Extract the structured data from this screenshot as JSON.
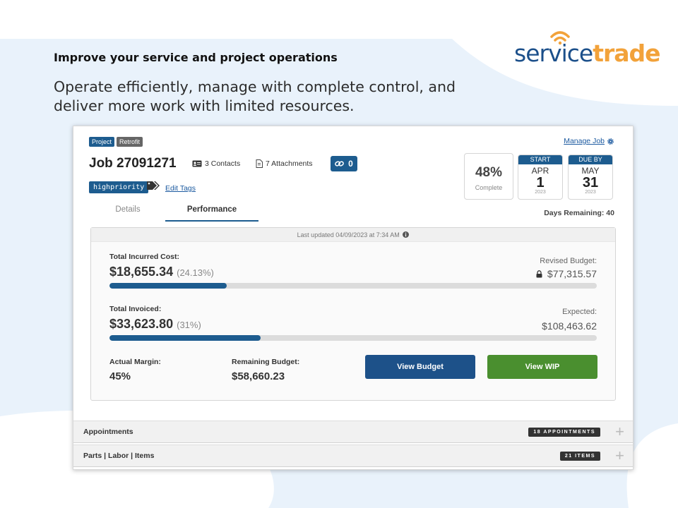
{
  "marketing": {
    "headline": "Improve your service and project operations",
    "subline": "Operate efficiently, manage with complete control, and deliver more work with limited resources."
  },
  "logo": {
    "service": "service",
    "trade": "trade"
  },
  "job": {
    "tags": [
      "Project",
      "Retrofit"
    ],
    "manage_label": "Manage Job",
    "title": "Job 27091271",
    "contacts": "3 Contacts",
    "attachments": "7 Attachments",
    "link_count": "0",
    "priority_tag": "highpriority",
    "edit_tags_label": "Edit Tags"
  },
  "progress": {
    "percent_label": "48%",
    "complete_label": "Complete",
    "value": 0.48
  },
  "dates": {
    "start": {
      "head": "START",
      "month": "APR",
      "day": "1",
      "year": "2023"
    },
    "due": {
      "head": "DUE BY",
      "month": "MAY",
      "day": "31",
      "year": "2023"
    }
  },
  "tabs": [
    {
      "label": "Details",
      "active": false
    },
    {
      "label": "Performance",
      "active": true
    }
  ],
  "days_remaining": "Days Remaining: 40",
  "performance": {
    "updated": "Last updated 04/09/2023 at 7:34 AM",
    "incurred": {
      "label": "Total Incurred Cost:",
      "amount": "$18,655.34",
      "pct": "(24.13%)",
      "fraction": 0.2413
    },
    "revised_budget": {
      "label": "Revised Budget:",
      "value": "$77,315.57"
    },
    "invoiced": {
      "label": "Total Invoiced:",
      "amount": "$33,623.80",
      "pct": "(31%)",
      "fraction": 0.31
    },
    "expected": {
      "label": "Expected:",
      "value": "$108,463.62"
    },
    "margin": {
      "label": "Actual Margin:",
      "value": "45%"
    },
    "remaining": {
      "label": "Remaining Budget:",
      "value": "$58,660.23"
    },
    "view_budget": "View Budget",
    "view_wip": "View WIP"
  },
  "accordions": [
    {
      "title": "Appointments",
      "badge": "18 APPOINTMENTS"
    },
    {
      "title": "Parts | Labor | Items",
      "badge": "21 ITEMS"
    }
  ],
  "colors": {
    "brand_blue": "#1d5c8f",
    "wip_green": "#4a8f2f",
    "logo_orange": "#f2a23a",
    "bg_blue": "#e8f1fb"
  },
  "icons": [
    "gear-icon",
    "contact-card-icon",
    "document-icon",
    "link-icon",
    "tag-icon",
    "lock-icon",
    "info-icon",
    "plus-icon",
    "wifi-icon"
  ]
}
